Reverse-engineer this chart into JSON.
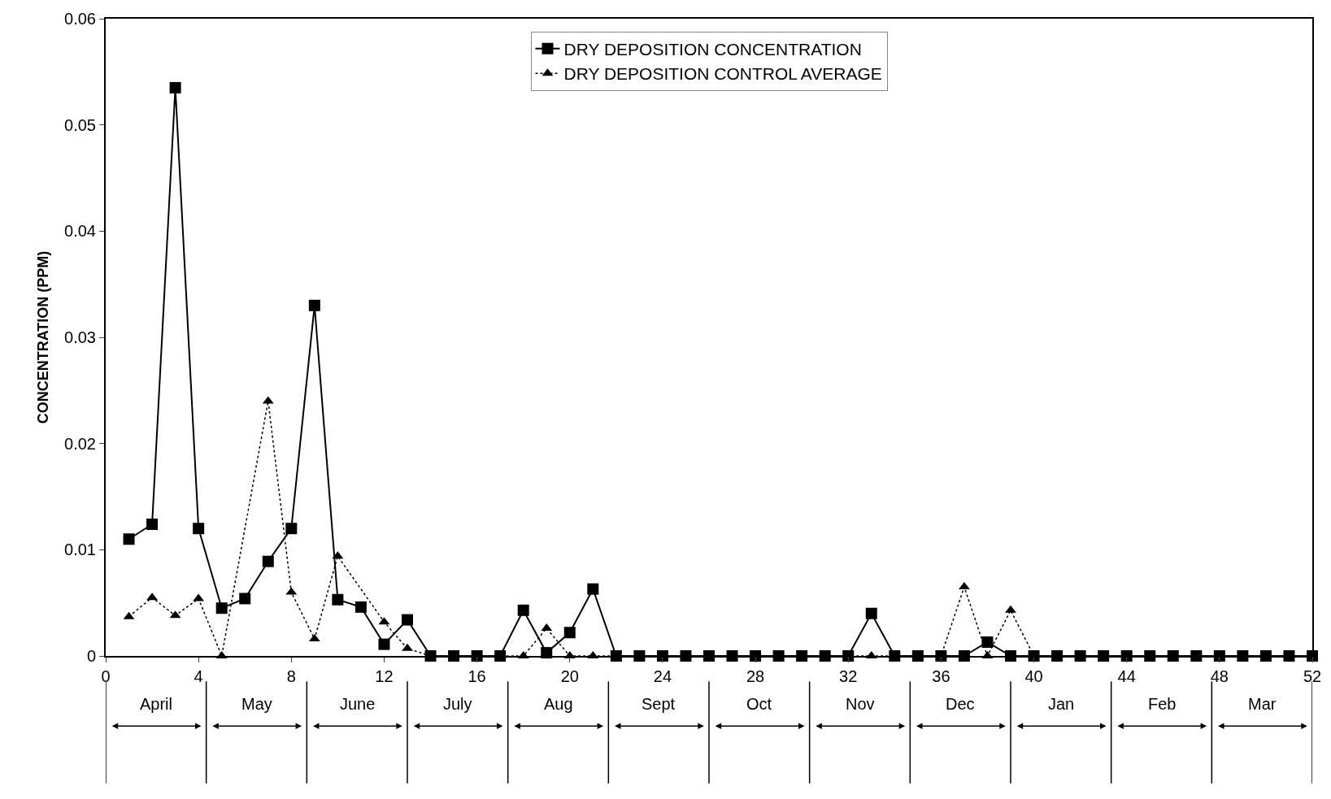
{
  "chart_data": {
    "type": "line",
    "ylabel": "CONCENTRATION (PPM)",
    "x": [
      1,
      2,
      3,
      4,
      5,
      6,
      7,
      8,
      9,
      10,
      11,
      12,
      13,
      14,
      15,
      16,
      17,
      18,
      19,
      20,
      21,
      22,
      23,
      24,
      25,
      26,
      27,
      28,
      29,
      30,
      31,
      32,
      33,
      34,
      35,
      36,
      37,
      38,
      39,
      40,
      41,
      42,
      43,
      44,
      45,
      46,
      47,
      48,
      49,
      50,
      51,
      52
    ],
    "series": [
      {
        "name": "DRY DEPOSITION CONCENTRATION",
        "color": "#000000",
        "marker": "square",
        "line_style": "solid",
        "values": [
          0.011,
          0.0124,
          0.0535,
          0.012,
          0.0045,
          0.0054,
          0.0089,
          0.012,
          0.033,
          0.0053,
          0.0046,
          0.0011,
          0.0034,
          0,
          0,
          0,
          0,
          0.0043,
          0.0003,
          0.0022,
          0.0063,
          0,
          0,
          0,
          0,
          0,
          0,
          0,
          0,
          0,
          0,
          0,
          0.004,
          0,
          0,
          0,
          0,
          0.0013,
          0,
          0,
          0,
          0,
          0,
          0,
          0,
          0,
          0,
          0,
          0,
          0,
          0,
          0
        ]
      },
      {
        "name": "DRY DEPOSITION CONTROL AVERAGE",
        "color": "#000000",
        "marker": "triangle",
        "line_style": "dotted",
        "values": [
          0.0037,
          0.0055,
          0.0038,
          0.0054,
          0,
          null,
          0.024,
          0.006,
          0.0016,
          0.0094,
          null,
          0.0032,
          0.0007,
          0,
          0,
          0,
          0,
          0,
          0.0026,
          0,
          0,
          0,
          0,
          0,
          0,
          0,
          0,
          0,
          0,
          0,
          0,
          0,
          0,
          0,
          0,
          0,
          0.0065,
          0,
          0.0043,
          0,
          null,
          null,
          null,
          null,
          null,
          null,
          null,
          null,
          null,
          null,
          null,
          null
        ]
      }
    ],
    "xlim": [
      0,
      52
    ],
    "xticks": [
      0,
      4,
      8,
      12,
      16,
      20,
      24,
      28,
      32,
      36,
      40,
      44,
      48,
      52
    ],
    "ylim": [
      0,
      0.06
    ],
    "yticks": [
      0,
      0.01,
      0.02,
      0.03,
      0.04,
      0.05,
      0.06
    ],
    "annotations": [
      "April",
      "May",
      "June",
      "July",
      "Aug",
      "Sept",
      "Oct",
      "Nov",
      "Dec",
      "Jan",
      "Feb",
      "Mar"
    ],
    "legend": "top"
  }
}
